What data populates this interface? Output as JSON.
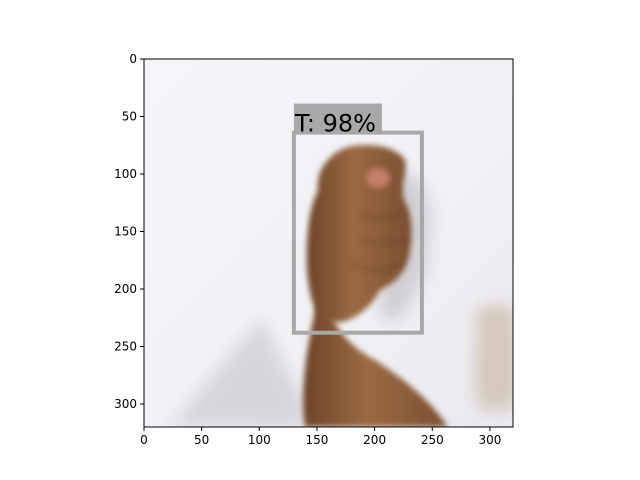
{
  "image": {
    "width": 320,
    "height": 320,
    "x_ticks": [
      0,
      50,
      100,
      150,
      200,
      250,
      300
    ],
    "y_ticks": [
      0,
      50,
      100,
      150,
      200,
      250,
      300
    ]
  },
  "scene": {
    "background_color": "#f2f2f6",
    "skin_color": "#9a6a42",
    "shadow_color": "#c9c7cc"
  },
  "detection": {
    "label": "T: 98%",
    "class": "T",
    "confidence": 0.98,
    "box": {
      "x_min": 130,
      "y_min": 64,
      "x_max": 241,
      "y_max": 238
    },
    "box_color": "#a8a8a8",
    "label_bg_color": "#a8a8a8"
  }
}
